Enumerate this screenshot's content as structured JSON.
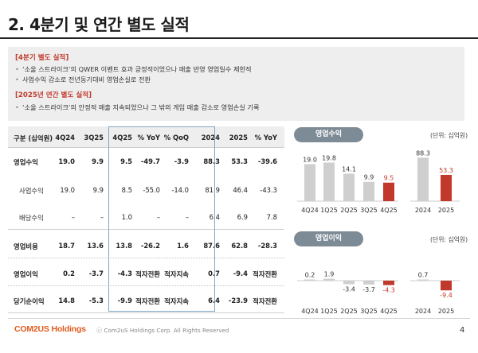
{
  "page": {
    "title": "2. 4분기 및 연간 별도 실적",
    "page_number": "4"
  },
  "summary": {
    "q4_heading": "[4분기 별도 실적]",
    "q4_lines": [
      "‘소울 스트라이크’의 QWER 이벤트 효과 긍정적이었으나 매출 반영 영업일수 제한적",
      "사업수익 감소로 전년동기대비 영업손실로 전환"
    ],
    "y2025_heading": "[2025년 연간 별도 실적]",
    "y2025_lines": [
      "‘소울 스트라이크’의 안정적 매출 지속되었으나 그 밖의 게임 매출 감소로 영업손실 기록"
    ]
  },
  "table": {
    "columns": [
      "구분 (십억원)",
      "4Q24",
      "3Q25",
      "4Q25",
      "% YoY",
      "% QoQ",
      "2024",
      "2025",
      "% YoY"
    ],
    "rows": [
      {
        "label": "영업수익",
        "bold": true,
        "values": [
          "19.0",
          "9.9",
          "9.5",
          "-49.7",
          "-3.9",
          "88.3",
          "53.3",
          "-39.6"
        ]
      },
      {
        "label": "사업수익",
        "bold": false,
        "values": [
          "19.0",
          "9.9",
          "8.5",
          "-55.0",
          "-14.0",
          "81.9",
          "46.4",
          "-43.3"
        ]
      },
      {
        "label": "배당수익",
        "bold": false,
        "values": [
          "–",
          "–",
          "1.0",
          "–",
          "–",
          "6.4",
          "6.9",
          "7.8"
        ]
      },
      {
        "label": "영업비용",
        "bold": true,
        "values": [
          "18.7",
          "13.6",
          "13.8",
          "-26.2",
          "1.6",
          "87.6",
          "62.8",
          "-28.3"
        ]
      },
      {
        "label": "영업이익",
        "bold": true,
        "values": [
          "0.2",
          "-3.7",
          "-4.3",
          "적자전환",
          "적자지속",
          "0.7",
          "-9.4",
          "적자전환"
        ]
      },
      {
        "label": "당기순이익",
        "bold": true,
        "values": [
          "14.8",
          "-5.3",
          "-9.9",
          "적자전환",
          "적자지속",
          "6.4",
          "-23.9",
          "적자전환"
        ]
      }
    ]
  },
  "charts": {
    "unit_label": "(단위: 십억원)",
    "revenue_title": "영업수익",
    "op_income_title": "영업이익"
  },
  "chart_data": [
    {
      "type": "bar",
      "title": "영업수익",
      "categories": [
        "4Q24",
        "1Q25",
        "2Q25",
        "3Q25",
        "4Q25",
        "2024",
        "2025"
      ],
      "values": [
        19.0,
        19.8,
        14.1,
        9.9,
        9.5,
        88.3,
        53.3
      ],
      "value_labels": [
        "19.0",
        "19.8",
        "14.1",
        "9.9",
        "9.5",
        "88.3",
        "53.3"
      ],
      "highlight": [
        "4Q25",
        "2025"
      ],
      "colors": {
        "normal": "#cfcfcf",
        "highlight": "#c0392b"
      }
    },
    {
      "type": "bar",
      "title": "영업이익",
      "categories": [
        "4Q24",
        "1Q25",
        "2Q25",
        "3Q25",
        "4Q25",
        "2024",
        "2025"
      ],
      "values": [
        0.2,
        1.9,
        -3.4,
        -3.7,
        -4.3,
        0.7,
        -9.4
      ],
      "value_labels": [
        "0.2",
        "1.9",
        "-3.4",
        "-3.7",
        "-4.3",
        "0.7",
        "-9.4"
      ],
      "highlight": [
        "4Q25",
        "2025"
      ],
      "colors": {
        "normal": "#cfcfcf",
        "highlight": "#c0392b"
      }
    }
  ],
  "footer": {
    "logo": "COM2US Holdings",
    "copyright": "ⓒ Com2uS Holdings Corp. All Rights Reserved"
  }
}
